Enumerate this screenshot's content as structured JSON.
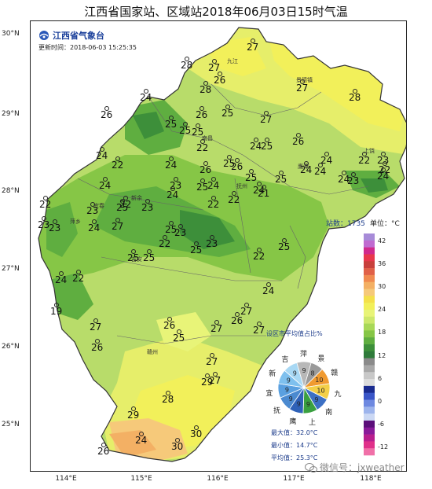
{
  "title": "江西省国家站、区域站2018年06月03日15时气温",
  "logo_text": "江西省气象台",
  "update_time": "更新时间：2018-06-03 15:25:35",
  "lat_labels": [
    "30°N",
    "29°N",
    "28°N",
    "27°N",
    "26°N",
    "25°N"
  ],
  "lon_labels": [
    "114°E",
    "115°E",
    "116°E",
    "117°E",
    "118°E"
  ],
  "station_count": "站数：1735",
  "unit": "单位：°C",
  "colorbar": {
    "labels": [
      "42",
      "36",
      "30",
      "24",
      "18",
      "12",
      "6",
      "0",
      "-6",
      "-12"
    ],
    "colors": [
      "#a78bd8",
      "#c06bd0",
      "#d02a8c",
      "#e8384c",
      "#c8403c",
      "#e06048",
      "#f08a50",
      "#f3b064",
      "#f6c97a",
      "#f4e04a",
      "#f2f05a",
      "#e8f478",
      "#cde86c",
      "#a8d858",
      "#86c646",
      "#5fae40",
      "#3d8f3a",
      "#2f7a3a",
      "#8a8a8a",
      "#a8a8a8",
      "#c8c8c8",
      "#dcdcdc",
      "#1a2b8f",
      "#3a56c8",
      "#6d88e0",
      "#9db4ec",
      "#cbd8f4",
      "#5c0f7a",
      "#8a1b9a",
      "#b81f8e",
      "#e0308a",
      "#f070a8"
    ]
  },
  "pie": {
    "title": "设区市平均值占比%",
    "cities": [
      "萍",
      "景",
      "赣",
      "九",
      "南",
      "上",
      "鹰",
      "抚",
      "宜",
      "新",
      "吉"
    ],
    "values": [
      9,
      8,
      10,
      10,
      9,
      9,
      9,
      9,
      9,
      9,
      9
    ],
    "colors": [
      "#b8b8b8",
      "#9a9a9a",
      "#f09a30",
      "#f3cf48",
      "#3c70c4",
      "#3aa040",
      "#2f62b8",
      "#4b8ad0",
      "#5aa0e0",
      "#7ec0ee",
      "#a8d8f4"
    ]
  },
  "stats": {
    "max": "最大值：32.0°C",
    "min": "最小值：14.7°C",
    "avg": "平均值：25.3°C"
  },
  "watermark": "微信号：jxweather",
  "city_names": [
    "景德镇",
    "南昌",
    "鹰潭",
    "上饶",
    "抚州",
    "宜春",
    "新余",
    "吉安",
    "赣州",
    "九江",
    "萍乡"
  ],
  "temperatures": [
    "27",
    "28",
    "27",
    "26",
    "28",
    "27",
    "28",
    "24",
    "26",
    "24",
    "25",
    "25",
    "26",
    "25",
    "25",
    "27",
    "26",
    "24",
    "25",
    "22",
    "24",
    "22",
    "24",
    "23",
    "26",
    "25",
    "25",
    "26",
    "25",
    "24",
    "25",
    "24",
    "24",
    "24",
    "24",
    "22",
    "23",
    "22",
    "23",
    "24",
    "25",
    "23",
    "23",
    "24",
    "24",
    "22",
    "22",
    "21",
    "22",
    "23",
    "23",
    "24",
    "27",
    "22",
    "23",
    "22",
    "23",
    "25",
    "25",
    "22",
    "25",
    "24",
    "19",
    "22",
    "24",
    "25",
    "25",
    "27",
    "26",
    "26",
    "25",
    "27",
    "26",
    "27",
    "27",
    "27",
    "27",
    "28",
    "29",
    "29",
    "30",
    "30",
    "24",
    "26",
    "28",
    "27"
  ]
}
